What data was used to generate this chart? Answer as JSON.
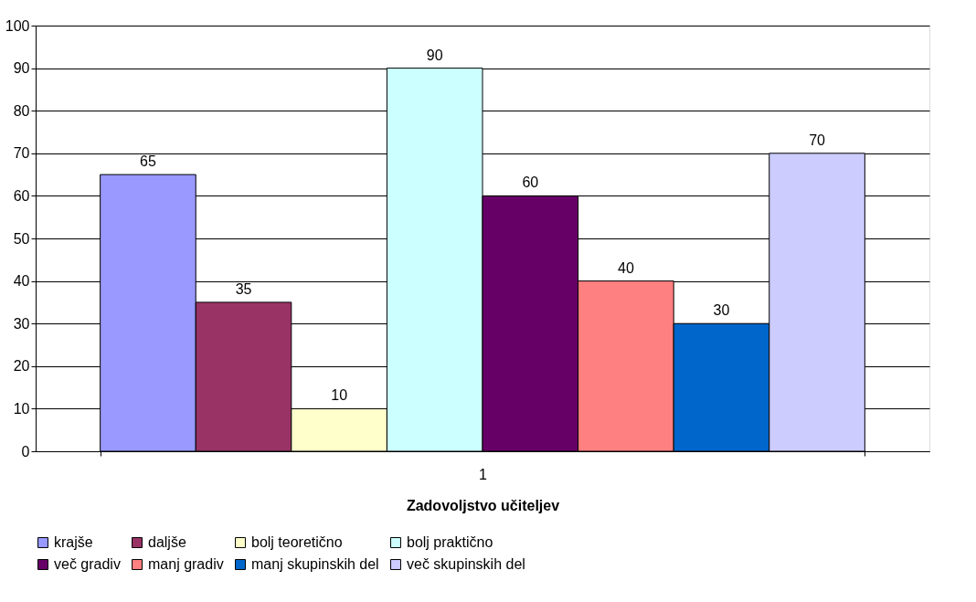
{
  "chart_data": {
    "type": "bar",
    "categories": [
      "1"
    ],
    "xlabel": "Zadovoljstvo učiteljev",
    "series": [
      {
        "name": "krajše",
        "color": "#9999ff",
        "values": [
          65
        ]
      },
      {
        "name": "daljše",
        "color": "#993366",
        "values": [
          35
        ]
      },
      {
        "name": "bolj teoretično",
        "color": "#ffffcc",
        "values": [
          10
        ]
      },
      {
        "name": "bolj praktično",
        "color": "#ccffff",
        "values": [
          90
        ]
      },
      {
        "name": "več gradiv",
        "color": "#660066",
        "values": [
          60
        ]
      },
      {
        "name": "manj gradiv",
        "color": "#ff8080",
        "values": [
          40
        ]
      },
      {
        "name": "manj skupinskih del",
        "color": "#0066cc",
        "values": [
          30
        ]
      },
      {
        "name": "več skupinskih del",
        "color": "#ccccff",
        "values": [
          70
        ]
      }
    ],
    "ylim": [
      0,
      100
    ],
    "yticks": [
      0,
      10,
      20,
      30,
      40,
      50,
      60,
      70,
      80,
      90,
      100
    ],
    "grid": "y",
    "legend": "bottom",
    "data_labels": true
  }
}
